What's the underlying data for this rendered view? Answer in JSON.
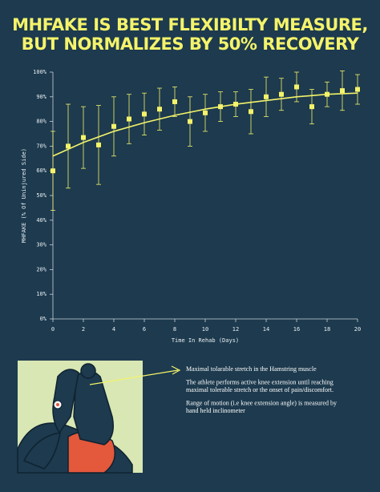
{
  "chart_data": {
    "type": "errorbar",
    "title": [
      "MHFAKE IS BEST FLEXIBILTY MEASURE,",
      "BUT NORMALIZES BY 50% RECOVERY"
    ],
    "x_label": "Time In Rehab (Days)",
    "y_label": "MHFAKE (% Of Uninjured Side)",
    "x": [
      0,
      1,
      2,
      3,
      4,
      5,
      6,
      7,
      8,
      9,
      10,
      11,
      12,
      13,
      14,
      15,
      16,
      17,
      18,
      19,
      20
    ],
    "series": [
      {
        "color": "#f4f36a",
        "values": [
          60,
          70,
          73.5,
          70.5,
          78,
          81,
          83,
          85,
          88,
          80,
          83.5,
          86,
          87,
          84,
          90,
          91,
          94,
          86,
          91,
          92.5,
          93
        ],
        "errors": [
          16,
          17,
          12.5,
          16,
          12,
          10,
          8.5,
          8.5,
          6,
          10,
          7.5,
          6,
          5,
          9,
          8,
          6.5,
          6,
          7,
          5,
          8,
          6
        ]
      }
    ],
    "trend": {
      "color": "#f4f36a",
      "x": [
        0,
        2,
        4,
        6,
        8,
        10,
        12,
        14,
        16,
        18,
        20
      ],
      "values": [
        66,
        71.5,
        76,
        79.5,
        82.5,
        85,
        87,
        88.5,
        90,
        91,
        91.5
      ]
    },
    "xlim": [
      0,
      20
    ],
    "xticks": [
      0,
      2,
      4,
      6,
      8,
      10,
      12,
      14,
      16,
      18,
      20
    ],
    "ylim": [
      0,
      100
    ],
    "yticks": [
      {
        "value": 0,
        "label": "0%"
      },
      {
        "value": 10,
        "label": "10%"
      },
      {
        "value": 20,
        "label": "20%"
      },
      {
        "value": 30,
        "label": "30%"
      },
      {
        "value": 40,
        "label": "40%"
      },
      {
        "value": 50,
        "label": "50%"
      },
      {
        "value": 60,
        "label": "60%"
      },
      {
        "value": 70,
        "label": "70%"
      },
      {
        "value": 80,
        "label": "80%"
      },
      {
        "value": 90,
        "label": "90%"
      },
      {
        "value": 100,
        "label": "100%"
      }
    ],
    "grid": false
  },
  "notes": [
    [
      "Maximal tolarable stretch in the Hamstring muscle"
    ],
    [
      "The athlete performs active knee extension until reaching",
      "maximal tolerable stretch or the onset of pain/discomfort."
    ],
    [
      "Range of motion (i.e knee extension angle) is measured by",
      "hand held inclinometer"
    ]
  ]
}
